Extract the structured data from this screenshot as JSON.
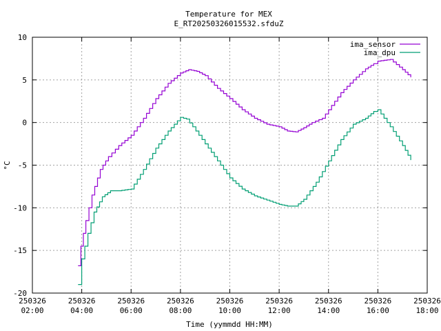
{
  "chart_data": {
    "type": "line",
    "title": "Temperature for MEX",
    "subtitle": "E_RT20250326015532.sfduZ",
    "xlabel": "Time (yymmdd HH:MM)",
    "ylabel": "°C",
    "ylim": [
      -20,
      10
    ],
    "xlim": [
      "2025-03-26 02:00",
      "2025-03-26 18:00"
    ],
    "grid": true,
    "legend_position": "top-right",
    "y_ticks": [
      "-20",
      "-15",
      "-10",
      "-5",
      "0",
      "5",
      "10"
    ],
    "x_ticks": [
      {
        "date": "250326",
        "time": "02:00"
      },
      {
        "date": "250326",
        "time": "04:00"
      },
      {
        "date": "250326",
        "time": "06:00"
      },
      {
        "date": "250326",
        "time": "08:00"
      },
      {
        "date": "250326",
        "time": "10:00"
      },
      {
        "date": "250326",
        "time": "12:00"
      },
      {
        "date": "250326",
        "time": "14:00"
      },
      {
        "date": "250326",
        "time": "16:00"
      },
      {
        "date": "250326",
        "time": "18:00"
      }
    ],
    "series": [
      {
        "name": "ima_sensor",
        "color": "#9400d3",
        "x": [
          "03:51",
          "03:58",
          "04:10",
          "04:25",
          "04:45",
          "05:05",
          "05:30",
          "06:00",
          "06:30",
          "07:00",
          "07:30",
          "08:00",
          "08:20",
          "08:40",
          "09:00",
          "09:30",
          "10:00",
          "10:30",
          "11:00",
          "11:30",
          "12:00",
          "12:20",
          "12:40",
          "13:00",
          "13:20",
          "13:45",
          "14:00",
          "14:30",
          "15:00",
          "15:30",
          "15:50",
          "16:00",
          "16:30",
          "17:00",
          "17:20"
        ],
        "y": [
          -16.8,
          -14.5,
          -11.5,
          -8.5,
          -5.5,
          -4.0,
          -2.7,
          -1.5,
          0.5,
          2.8,
          4.6,
          5.8,
          6.2,
          6.0,
          5.5,
          4.0,
          2.8,
          1.5,
          0.5,
          -0.2,
          -0.5,
          -1.0,
          -1.1,
          -0.6,
          0.0,
          0.5,
          1.5,
          3.5,
          5.0,
          6.3,
          6.9,
          7.2,
          7.4,
          6.2,
          5.3
        ]
      },
      {
        "name": "ima_dpu",
        "color": "#009e73",
        "x": [
          "03:51",
          "04:00",
          "04:15",
          "04:30",
          "04:50",
          "05:10",
          "05:30",
          "06:00",
          "06:30",
          "07:00",
          "07:30",
          "08:00",
          "08:15",
          "08:30",
          "09:00",
          "09:30",
          "10:00",
          "10:30",
          "11:00",
          "11:30",
          "12:00",
          "12:20",
          "12:40",
          "13:00",
          "13:30",
          "14:00",
          "14:30",
          "15:00",
          "15:30",
          "15:50",
          "16:00",
          "16:30",
          "17:00",
          "17:20"
        ],
        "y": [
          -19.0,
          -16.0,
          -13.0,
          -10.5,
          -8.7,
          -8.0,
          -8.0,
          -7.8,
          -5.5,
          -3.0,
          -1.0,
          0.6,
          0.4,
          -0.5,
          -2.5,
          -4.5,
          -6.5,
          -7.8,
          -8.6,
          -9.1,
          -9.6,
          -9.8,
          -9.8,
          -9.0,
          -7.0,
          -4.5,
          -2.0,
          -0.2,
          0.5,
          1.3,
          1.5,
          -0.5,
          -2.7,
          -4.4
        ]
      }
    ]
  }
}
